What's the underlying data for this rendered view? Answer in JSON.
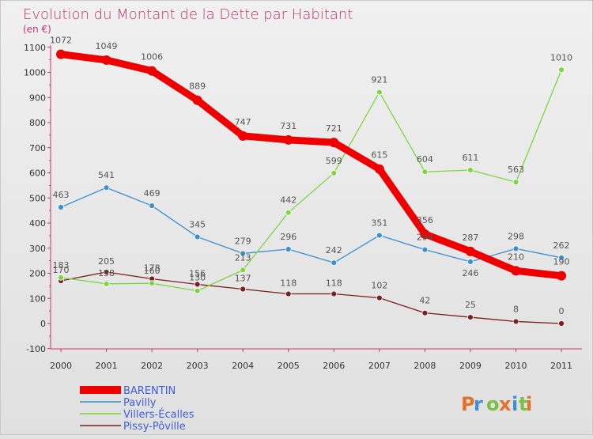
{
  "chart_data": {
    "type": "line",
    "title": "Evolution du Montant de la Dette par Habitant",
    "subtitle": "(en €)",
    "x": [
      "2000",
      "2001",
      "2002",
      "2003",
      "2004",
      "2005",
      "2006",
      "2007",
      "2008",
      "2009",
      "2010",
      "2011"
    ],
    "ylim": [
      -100,
      1100
    ],
    "yticks": [
      -100,
      0,
      100,
      200,
      300,
      400,
      500,
      600,
      700,
      800,
      900,
      1000,
      1100
    ],
    "grid": false,
    "legend_placement": "bottom-left",
    "series": [
      {
        "name": "BARENTIN",
        "color": "#ee0000",
        "values": [
          1072,
          1049,
          1006,
          889,
          747,
          731,
          721,
          615,
          356,
          287,
          210,
          190
        ]
      },
      {
        "name": "Pavilly",
        "color": "#3b8fd0",
        "values": [
          463,
          541,
          469,
          345,
          279,
          296,
          242,
          351,
          294,
          246,
          298,
          262
        ]
      },
      {
        "name": "Villers-Écalles",
        "color": "#7dd63f",
        "values": [
          183,
          158,
          160,
          130,
          213,
          442,
          599,
          921,
          604,
          611,
          563,
          1010
        ]
      },
      {
        "name": "Pissy-Pôville",
        "color": "#7a1f1f",
        "values": [
          170,
          205,
          178,
          156,
          137,
          118,
          118,
          102,
          42,
          25,
          8,
          0
        ]
      }
    ]
  },
  "brand": {
    "letters": [
      "P",
      "r",
      "o",
      "x",
      "i",
      "t",
      "i"
    ],
    "colors": [
      "#e8702a",
      "#3d8fd8",
      "#7bc142",
      "#e8702a",
      "#3d8fd8",
      "#7bc142",
      "#e8702a"
    ]
  }
}
